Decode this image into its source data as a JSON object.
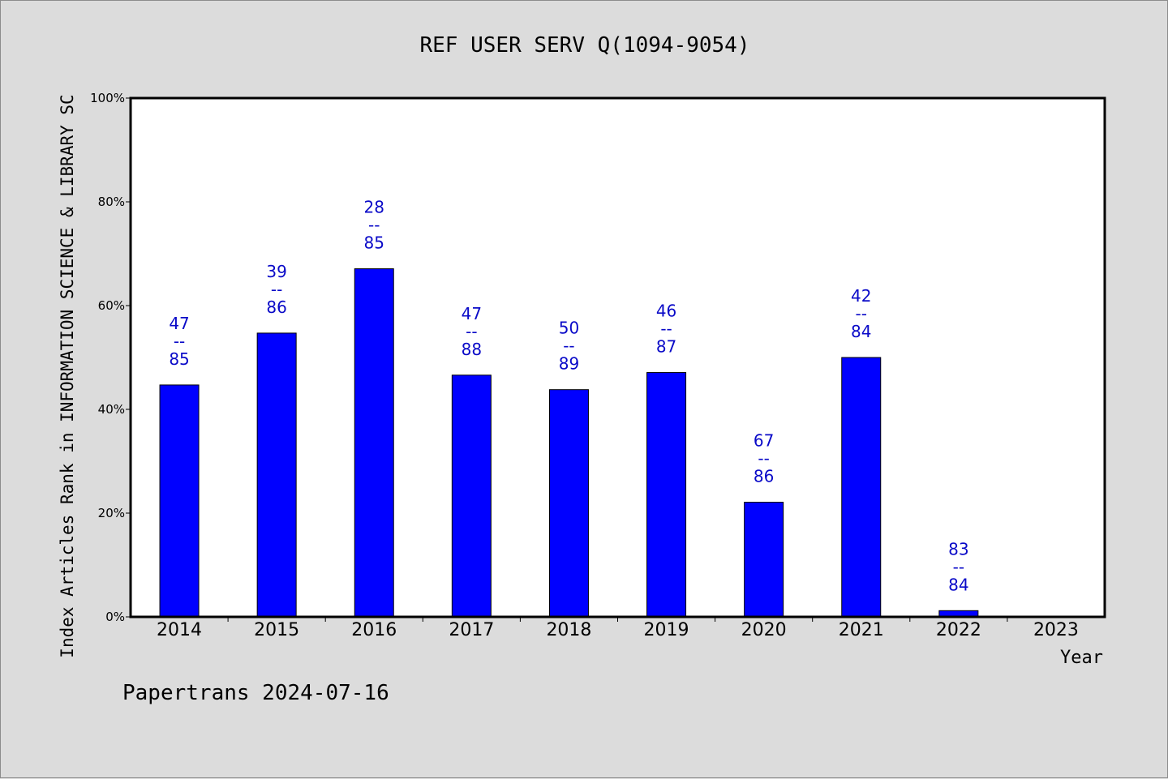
{
  "chart_data": {
    "type": "bar",
    "title": "REF USER SERV Q(1094-9054)",
    "ylabel": "Index Articles Rank in INFORMATION SCIENCE & LIBRARY SC",
    "xlabel": "Year",
    "ylim": [
      0,
      100
    ],
    "yticks": [
      "0%",
      "20%",
      "40%",
      "60%",
      "80%",
      "100%"
    ],
    "ytick_values": [
      0,
      20,
      40,
      60,
      80,
      100
    ],
    "categories": [
      "2014",
      "2015",
      "2016",
      "2017",
      "2018",
      "2019",
      "2020",
      "2021",
      "2022",
      "2023"
    ],
    "values": [
      44.7,
      54.7,
      67.1,
      46.6,
      43.8,
      47.1,
      22.1,
      50.0,
      1.2,
      null
    ],
    "ranks": [
      {
        "rank": "47",
        "sep": "--",
        "total": "85"
      },
      {
        "rank": "39",
        "sep": "--",
        "total": "86"
      },
      {
        "rank": "28",
        "sep": "--",
        "total": "85"
      },
      {
        "rank": "47",
        "sep": "--",
        "total": "88"
      },
      {
        "rank": "50",
        "sep": "--",
        "total": "89"
      },
      {
        "rank": "46",
        "sep": "--",
        "total": "87"
      },
      {
        "rank": "67",
        "sep": "--",
        "total": "86"
      },
      {
        "rank": "42",
        "sep": "--",
        "total": "84"
      },
      {
        "rank": "83",
        "sep": "--",
        "total": "84"
      },
      null
    ],
    "bar_color": "#0000ff",
    "label_color": "#0a0ac8",
    "grid": false,
    "legend": "none"
  },
  "footer": "Papertrans 2024-07-16"
}
